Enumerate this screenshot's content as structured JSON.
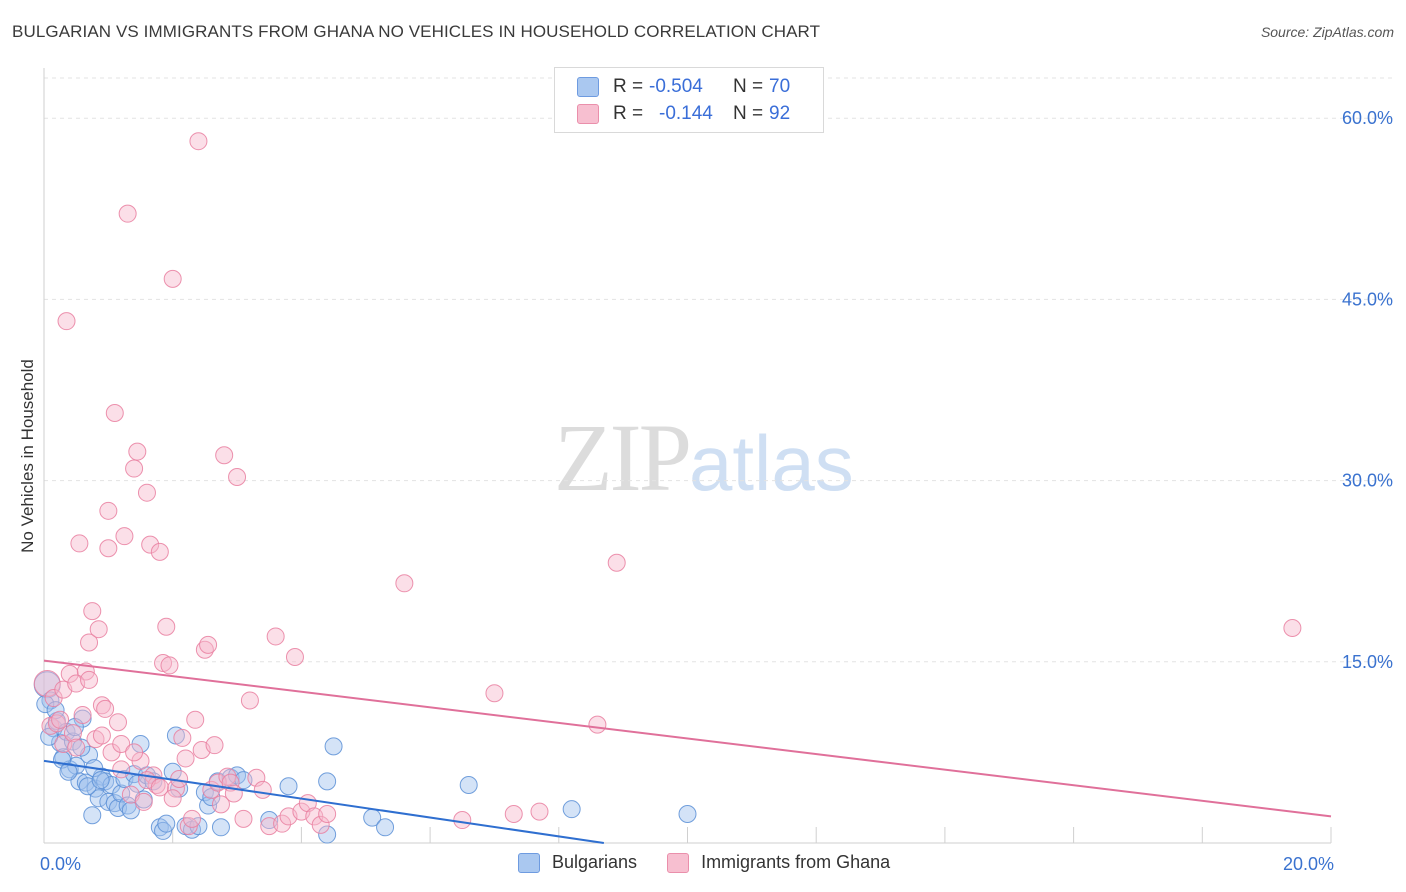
{
  "title": "BULGARIAN VS IMMIGRANTS FROM GHANA NO VEHICLES IN HOUSEHOLD CORRELATION CHART",
  "source": "Source: ZipAtlas.com",
  "watermark": {
    "zip": "ZIP",
    "atlas": "atlas"
  },
  "legend": {
    "r_label": "R =",
    "n_label": "N =",
    "rows": [
      {
        "r": "-0.504",
        "n": "70",
        "color": "#aac8f0"
      },
      {
        "r": "-0.144",
        "n": "92",
        "color": "#f7bfd0"
      }
    ]
  },
  "bottom_legend": [
    {
      "label": "Bulgarians",
      "color": "#aac8f0"
    },
    {
      "label": "Immigrants from Ghana",
      "color": "#f7bfd0"
    }
  ],
  "colors": {
    "blue_fill": "#9fc2ee",
    "blue_stroke": "#5a8fd6",
    "blue_line": "#2f6fd0",
    "pink_fill": "#f7b9cc",
    "pink_stroke": "#e97fa0",
    "pink_line": "#e0709a",
    "tick_color": "#3a72cf",
    "grid": "#e3e3e3"
  },
  "chart_data": {
    "type": "scatter",
    "title": "BULGARIAN VS IMMIGRANTS FROM GHANA NO VEHICLES IN HOUSEHOLD CORRELATION CHART",
    "xlabel": "",
    "ylabel": "No Vehicles in Household",
    "xlim": [
      0,
      20
    ],
    "ylim": [
      0,
      63
    ],
    "x_tick_labels": [
      {
        "value": 0,
        "label": "0.0%"
      },
      {
        "value": 20,
        "label": "20.0%"
      }
    ],
    "y_tick_labels": [
      {
        "value": 15,
        "label": "15.0%"
      },
      {
        "value": 30,
        "label": "30.0%"
      },
      {
        "value": 45,
        "label": "45.0%"
      },
      {
        "value": 60,
        "label": "60.0%"
      }
    ],
    "series": [
      {
        "name": "Bulgarians",
        "r": -0.504,
        "n": 70,
        "trend": {
          "x0": 0,
          "y0": 6.8,
          "x1": 8.7,
          "y1": 0
        },
        "points": [
          [
            0.05,
            13.1
          ],
          [
            0.1,
            11.8
          ],
          [
            0.15,
            9.5
          ],
          [
            0.2,
            10.1
          ],
          [
            0.25,
            8.3
          ],
          [
            0.3,
            7.1
          ],
          [
            0.35,
            9.2
          ],
          [
            0.4,
            6.1
          ],
          [
            0.45,
            8.4
          ],
          [
            0.5,
            6.4
          ],
          [
            0.55,
            5.1
          ],
          [
            0.6,
            10.3
          ],
          [
            0.65,
            5.0
          ],
          [
            0.7,
            7.3
          ],
          [
            0.75,
            2.3
          ],
          [
            0.8,
            4.5
          ],
          [
            0.85,
            3.7
          ],
          [
            0.9,
            5.5
          ],
          [
            0.95,
            5.1
          ],
          [
            1.0,
            3.4
          ],
          [
            1.05,
            4.8
          ],
          [
            1.1,
            3.3
          ],
          [
            1.15,
            2.9
          ],
          [
            1.2,
            4.1
          ],
          [
            1.25,
            5.3
          ],
          [
            1.3,
            3.1
          ],
          [
            1.35,
            2.7
          ],
          [
            1.4,
            5.7
          ],
          [
            1.45,
            4.9
          ],
          [
            1.5,
            8.2
          ],
          [
            1.55,
            3.6
          ],
          [
            1.6,
            5.6
          ],
          [
            1.7,
            5.1
          ],
          [
            1.8,
            1.3
          ],
          [
            1.85,
            1.0
          ],
          [
            1.9,
            1.6
          ],
          [
            2.0,
            5.9
          ],
          [
            2.05,
            8.9
          ],
          [
            2.1,
            4.5
          ],
          [
            2.2,
            1.4
          ],
          [
            2.3,
            1.1
          ],
          [
            2.4,
            1.4
          ],
          [
            2.5,
            4.2
          ],
          [
            2.55,
            3.1
          ],
          [
            2.6,
            3.8
          ],
          [
            2.7,
            5.1
          ],
          [
            2.75,
            1.3
          ],
          [
            2.9,
            5.4
          ],
          [
            3.0,
            5.6
          ],
          [
            3.1,
            5.2
          ],
          [
            3.5,
            1.9
          ],
          [
            3.8,
            4.7
          ],
          [
            4.4,
            5.1
          ],
          [
            4.5,
            8.0
          ],
          [
            4.4,
            0.7
          ],
          [
            5.1,
            2.1
          ],
          [
            5.3,
            1.3
          ],
          [
            6.6,
            4.8
          ],
          [
            8.2,
            2.8
          ],
          [
            10.0,
            2.4
          ],
          [
            0.02,
            11.5
          ],
          [
            0.08,
            8.8
          ],
          [
            0.18,
            11.0
          ],
          [
            0.28,
            6.9
          ],
          [
            0.38,
            5.9
          ],
          [
            0.48,
            9.6
          ],
          [
            0.58,
            7.9
          ],
          [
            0.68,
            4.7
          ],
          [
            0.78,
            6.2
          ],
          [
            0.88,
            5.2
          ]
        ]
      },
      {
        "name": "Immigrants from Ghana",
        "r": -0.144,
        "n": 92,
        "trend": {
          "x0": 0,
          "y0": 15.1,
          "x1": 20,
          "y1": 2.2
        },
        "points": [
          [
            0.05,
            13.2
          ],
          [
            0.1,
            9.7
          ],
          [
            0.15,
            12.0
          ],
          [
            0.2,
            9.9
          ],
          [
            0.25,
            10.2
          ],
          [
            0.3,
            8.2
          ],
          [
            0.35,
            43.2
          ],
          [
            0.4,
            14.0
          ],
          [
            0.45,
            9.1
          ],
          [
            0.5,
            7.9
          ],
          [
            0.55,
            24.8
          ],
          [
            0.6,
            10.6
          ],
          [
            0.65,
            14.2
          ],
          [
            0.7,
            16.6
          ],
          [
            0.75,
            19.2
          ],
          [
            0.8,
            8.6
          ],
          [
            0.85,
            17.7
          ],
          [
            0.9,
            11.4
          ],
          [
            0.95,
            11.1
          ],
          [
            1.0,
            24.4
          ],
          [
            1.05,
            7.5
          ],
          [
            1.1,
            35.6
          ],
          [
            1.15,
            10.0
          ],
          [
            1.2,
            8.2
          ],
          [
            1.25,
            25.4
          ],
          [
            1.3,
            52.1
          ],
          [
            1.35,
            4.0
          ],
          [
            1.4,
            31.0
          ],
          [
            1.45,
            32.4
          ],
          [
            1.5,
            6.8
          ],
          [
            1.55,
            3.4
          ],
          [
            1.6,
            29.0
          ],
          [
            1.65,
            24.7
          ],
          [
            1.7,
            5.6
          ],
          [
            1.75,
            4.8
          ],
          [
            1.8,
            24.1
          ],
          [
            1.85,
            14.9
          ],
          [
            1.9,
            17.9
          ],
          [
            1.95,
            14.7
          ],
          [
            2.0,
            46.7
          ],
          [
            2.05,
            4.5
          ],
          [
            2.1,
            5.3
          ],
          [
            2.15,
            8.7
          ],
          [
            2.2,
            7.0
          ],
          [
            2.25,
            1.4
          ],
          [
            2.3,
            2.0
          ],
          [
            2.35,
            10.2
          ],
          [
            2.4,
            58.1
          ],
          [
            2.45,
            7.7
          ],
          [
            2.5,
            16.0
          ],
          [
            2.55,
            16.4
          ],
          [
            2.6,
            4.4
          ],
          [
            2.65,
            8.1
          ],
          [
            2.7,
            5.0
          ],
          [
            2.75,
            3.2
          ],
          [
            2.8,
            32.1
          ],
          [
            2.85,
            5.5
          ],
          [
            2.9,
            5.0
          ],
          [
            2.95,
            4.1
          ],
          [
            3.0,
            30.3
          ],
          [
            3.1,
            2.0
          ],
          [
            3.2,
            11.8
          ],
          [
            3.3,
            5.4
          ],
          [
            3.4,
            4.4
          ],
          [
            3.5,
            1.4
          ],
          [
            3.6,
            17.1
          ],
          [
            3.7,
            1.6
          ],
          [
            3.8,
            2.2
          ],
          [
            3.9,
            15.4
          ],
          [
            4.0,
            2.6
          ],
          [
            4.1,
            3.3
          ],
          [
            4.2,
            2.2
          ],
          [
            4.3,
            1.5
          ],
          [
            4.4,
            2.4
          ],
          [
            5.6,
            21.5
          ],
          [
            6.5,
            1.9
          ],
          [
            7.0,
            12.4
          ],
          [
            7.3,
            2.4
          ],
          [
            7.7,
            2.6
          ],
          [
            8.6,
            9.8
          ],
          [
            8.9,
            23.2
          ],
          [
            19.4,
            17.8
          ],
          [
            1.0,
            27.5
          ],
          [
            0.3,
            12.7
          ],
          [
            0.5,
            13.2
          ],
          [
            0.7,
            13.5
          ],
          [
            0.9,
            8.9
          ],
          [
            1.2,
            6.1
          ],
          [
            1.4,
            7.5
          ],
          [
            1.6,
            5.2
          ],
          [
            1.8,
            4.6
          ],
          [
            2.0,
            3.7
          ]
        ]
      }
    ]
  }
}
